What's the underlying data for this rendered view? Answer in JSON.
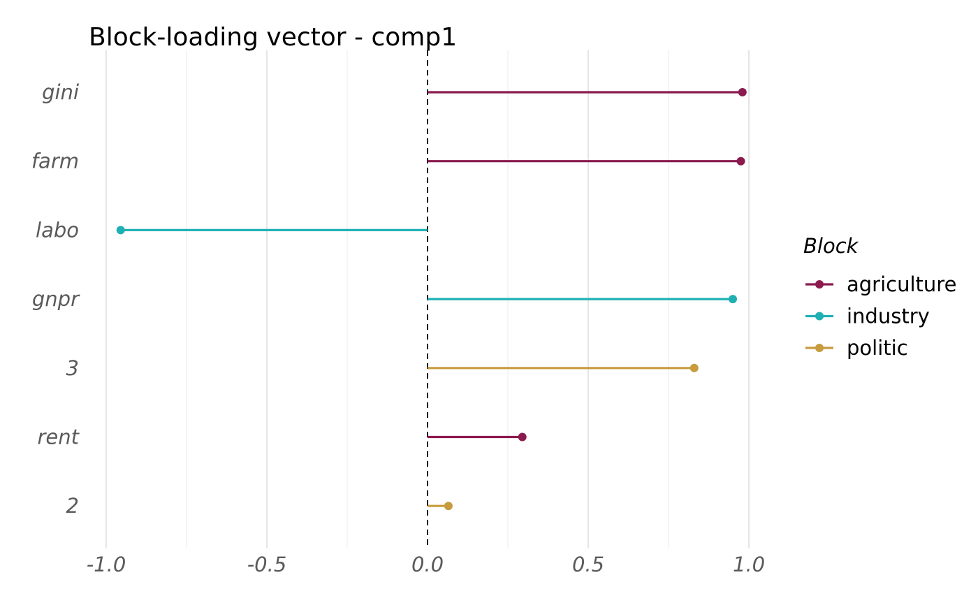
{
  "chart_data": {
    "type": "lollipop",
    "title": "Block-loading vector - comp1",
    "xlabel": "",
    "ylabel": "",
    "xlim": [
      -1.05,
      1.05
    ],
    "x_ticks": [
      -1.0,
      -0.5,
      0.0,
      0.5,
      1.0
    ],
    "x_tick_labels": [
      "-1.0",
      "-0.5",
      "0.0",
      "0.5",
      "1.0"
    ],
    "grid": true,
    "reference_line": {
      "x": 0,
      "style": "dashed"
    },
    "categories": [
      "gini",
      "farm",
      "labo",
      "gnpr",
      "3",
      "rent",
      "2"
    ],
    "points": [
      {
        "label": "gini",
        "value": 0.98,
        "block": "agriculture"
      },
      {
        "label": "farm",
        "value": 0.975,
        "block": "agriculture"
      },
      {
        "label": "labo",
        "value": -0.955,
        "block": "industry"
      },
      {
        "label": "gnpr",
        "value": 0.95,
        "block": "industry"
      },
      {
        "label": "3",
        "value": 0.83,
        "block": "politic"
      },
      {
        "label": "rent",
        "value": 0.295,
        "block": "agriculture"
      },
      {
        "label": "2",
        "value": 0.065,
        "block": "politic"
      }
    ],
    "legend": {
      "title": "Block",
      "position": "right",
      "items": [
        {
          "name": "agriculture",
          "color": "#8b1a4f"
        },
        {
          "name": "industry",
          "color": "#1fb0b4"
        },
        {
          "name": "politic",
          "color": "#c79b3e"
        }
      ]
    }
  }
}
